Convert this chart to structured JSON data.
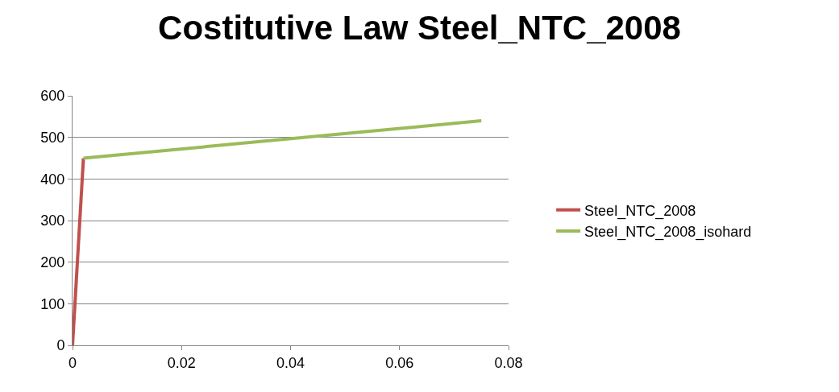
{
  "chart_data": {
    "type": "line",
    "title": "Costitutive Law Steel_NTC_2008",
    "series": [
      {
        "name": "Steel_NTC_2008",
        "color": "#c0504d",
        "x": [
          0,
          0.002
        ],
        "values": [
          0,
          450
        ]
      },
      {
        "name": "Steel_NTC_2008_isohard",
        "color": "#9bbb59",
        "x": [
          0.002,
          0.075
        ],
        "values": [
          450,
          540
        ]
      }
    ],
    "xlim": [
      0,
      0.08
    ],
    "xticks": [
      0,
      0.02,
      0.04,
      0.06,
      0.08
    ],
    "ylim": [
      0,
      600
    ],
    "yticks": [
      0,
      100,
      200,
      300,
      400,
      500,
      600
    ],
    "grid": "y",
    "legend": "right",
    "marker": "none",
    "line_style": "solid"
  }
}
